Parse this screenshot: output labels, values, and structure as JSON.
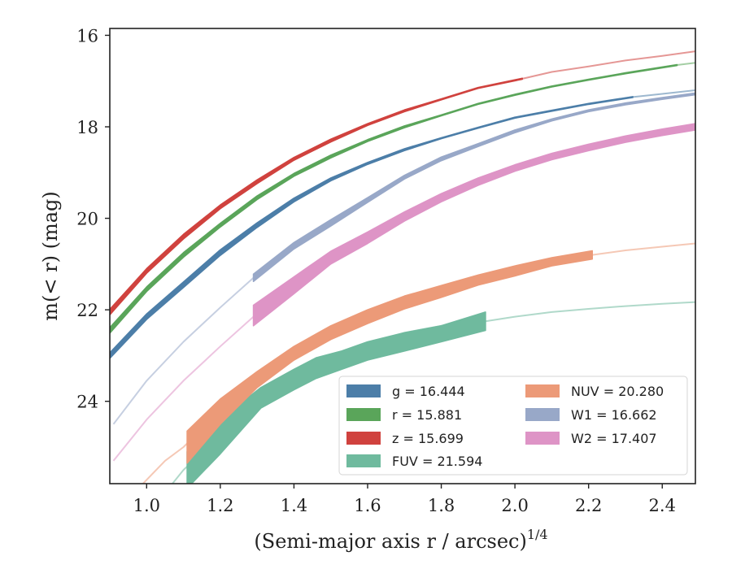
{
  "chart_data": {
    "type": "line",
    "xlabel": "(Semi-major axis r / arcsec)",
    "xlabel_exponent": "1/4",
    "ylabel": "m(< r) (mag)",
    "xlim": [
      0.9,
      2.49
    ],
    "ylim": [
      25.8,
      15.85
    ],
    "y_inverted": true,
    "x_ticks": [
      "1.0",
      "1.2",
      "1.4",
      "1.6",
      "1.8",
      "2.0",
      "2.2",
      "2.4"
    ],
    "y_ticks": [
      "16",
      "18",
      "20",
      "22",
      "24"
    ],
    "legend_position": "lower-right",
    "legend_columns": 2,
    "series": [
      {
        "name": "g = 16.444",
        "legend_label": "g = 16.444",
        "color": "#4c7ea8",
        "faint_x": [
          0.9,
          1.0,
          1.1,
          1.2,
          1.3,
          1.4,
          1.5,
          1.6,
          1.7,
          1.8,
          1.9,
          2.0,
          2.1,
          2.2,
          2.32,
          2.4,
          2.49
        ],
        "faint_y": [
          23.0,
          22.15,
          21.45,
          20.75,
          20.15,
          19.6,
          19.15,
          18.8,
          18.5,
          18.25,
          18.02,
          17.8,
          17.65,
          17.5,
          17.35,
          17.28,
          17.2
        ],
        "bold_x": [
          0.9,
          1.0,
          1.1,
          1.2,
          1.3,
          1.4,
          1.5,
          1.6,
          1.7,
          1.8,
          1.9,
          2.0,
          2.1,
          2.2,
          2.32
        ],
        "bold_upper": [
          22.94,
          22.09,
          21.39,
          20.69,
          20.1,
          19.56,
          19.12,
          18.78,
          18.48,
          18.24,
          18.01,
          17.79,
          17.64,
          17.49,
          17.34
        ],
        "bold_lower": [
          23.06,
          22.21,
          21.51,
          20.81,
          20.2,
          19.64,
          19.18,
          18.82,
          18.52,
          18.26,
          18.03,
          17.81,
          17.66,
          17.51,
          17.36
        ]
      },
      {
        "name": "r = 15.881",
        "legend_label": "r = 15.881",
        "color": "#5aa55a",
        "faint_x": [
          0.9,
          1.0,
          1.1,
          1.2,
          1.3,
          1.4,
          1.5,
          1.6,
          1.7,
          1.8,
          1.9,
          2.0,
          2.1,
          2.2,
          2.3,
          2.44,
          2.49
        ],
        "faint_y": [
          22.45,
          21.55,
          20.8,
          20.15,
          19.55,
          19.05,
          18.65,
          18.3,
          18.0,
          17.75,
          17.5,
          17.3,
          17.12,
          16.97,
          16.83,
          16.65,
          16.6
        ],
        "bold_x": [
          0.9,
          1.0,
          1.1,
          1.2,
          1.3,
          1.4,
          1.5,
          1.6,
          1.7,
          1.8,
          1.9,
          2.0,
          2.1,
          2.2,
          2.3,
          2.44
        ],
        "bold_upper": [
          22.39,
          21.5,
          20.75,
          20.11,
          19.51,
          19.02,
          18.62,
          18.28,
          17.98,
          17.74,
          17.49,
          17.29,
          17.11,
          16.96,
          16.82,
          16.64
        ],
        "bold_lower": [
          22.51,
          21.6,
          20.85,
          20.19,
          19.59,
          19.08,
          18.68,
          18.32,
          18.02,
          17.76,
          17.51,
          17.31,
          17.13,
          16.98,
          16.84,
          16.66
        ]
      },
      {
        "name": "z = 15.699",
        "legend_label": "z = 15.699",
        "color": "#d0423e",
        "faint_x": [
          0.9,
          1.0,
          1.1,
          1.2,
          1.3,
          1.4,
          1.5,
          1.6,
          1.7,
          1.8,
          1.9,
          2.02,
          2.1,
          2.2,
          2.3,
          2.4,
          2.49
        ],
        "faint_y": [
          22.05,
          21.15,
          20.4,
          19.75,
          19.2,
          18.7,
          18.3,
          17.95,
          17.65,
          17.4,
          17.15,
          16.95,
          16.8,
          16.68,
          16.55,
          16.45,
          16.35
        ],
        "bold_x": [
          0.9,
          1.0,
          1.1,
          1.2,
          1.3,
          1.4,
          1.5,
          1.6,
          1.7,
          1.8,
          1.9,
          2.02
        ],
        "bold_upper": [
          21.99,
          21.1,
          20.35,
          19.71,
          19.16,
          18.67,
          18.27,
          17.93,
          17.63,
          17.39,
          17.14,
          16.94
        ],
        "bold_lower": [
          22.11,
          21.2,
          20.45,
          19.79,
          19.24,
          18.73,
          18.33,
          17.97,
          17.67,
          17.41,
          17.16,
          16.96
        ]
      },
      {
        "name": "FUV = 21.594",
        "legend_label": "FUV = 21.594",
        "color": "#6fba9e",
        "faint_x": [
          1.07,
          1.1,
          1.2,
          1.3,
          1.4,
          1.5,
          1.6,
          1.7,
          1.8,
          1.92,
          2.0,
          2.1,
          2.2,
          2.3,
          2.4,
          2.49
        ],
        "faint_y": [
          25.8,
          25.5,
          24.75,
          24.0,
          23.45,
          23.05,
          22.75,
          22.5,
          22.35,
          22.25,
          22.15,
          22.05,
          21.98,
          21.92,
          21.87,
          21.83
        ],
        "bold_x": [
          1.11,
          1.2,
          1.31,
          1.4,
          1.46,
          1.53,
          1.6,
          1.7,
          1.8,
          1.92
        ],
        "bold_upper": [
          25.1,
          24.4,
          23.7,
          23.3,
          23.05,
          22.9,
          22.7,
          22.5,
          22.35,
          22.05
        ],
        "bold_lower": [
          25.9,
          25.15,
          24.15,
          23.75,
          23.5,
          23.3,
          23.1,
          22.9,
          22.7,
          22.45
        ]
      },
      {
        "name": "NUV = 20.280",
        "legend_label": "NUV = 20.280",
        "color": "#ec9a78",
        "faint_x": [
          0.99,
          1.05,
          1.1,
          1.2,
          1.3,
          1.4,
          1.5,
          1.6,
          1.7,
          1.8,
          1.9,
          2.0,
          2.1,
          2.21,
          2.3,
          2.4,
          2.49
        ],
        "faint_y": [
          25.8,
          25.3,
          25.0,
          24.2,
          23.5,
          22.95,
          22.5,
          22.15,
          21.85,
          21.6,
          21.35,
          21.15,
          20.95,
          20.8,
          20.7,
          20.62,
          20.55
        ],
        "bold_x": [
          1.11,
          1.2,
          1.3,
          1.4,
          1.5,
          1.6,
          1.7,
          1.8,
          1.9,
          2.0,
          2.1,
          2.21
        ],
        "bold_upper": [
          24.65,
          23.95,
          23.35,
          22.8,
          22.35,
          22.0,
          21.7,
          21.47,
          21.24,
          21.04,
          20.86,
          20.71
        ],
        "bold_lower": [
          25.35,
          24.5,
          23.7,
          23.1,
          22.65,
          22.3,
          21.98,
          21.73,
          21.46,
          21.26,
          21.04,
          20.89
        ]
      },
      {
        "name": "W1 = 16.662",
        "legend_label": "W1 = 16.662",
        "color": "#98a8c8",
        "faint_x": [
          0.91,
          1.0,
          1.1,
          1.2,
          1.29,
          1.4,
          1.5,
          1.6,
          1.7,
          1.8,
          1.9,
          2.0,
          2.1,
          2.2,
          2.3,
          2.4,
          2.49
        ],
        "faint_y": [
          24.5,
          23.55,
          22.7,
          21.95,
          21.3,
          20.6,
          20.1,
          19.6,
          19.1,
          18.7,
          18.4,
          18.1,
          17.85,
          17.65,
          17.5,
          17.38,
          17.28
        ],
        "bold_x": [
          1.29,
          1.4,
          1.5,
          1.6,
          1.7,
          1.8,
          1.9,
          2.0,
          2.1,
          2.2,
          2.3,
          2.4,
          2.49
        ],
        "bold_upper": [
          21.22,
          20.53,
          20.03,
          19.55,
          19.06,
          18.66,
          18.37,
          18.07,
          17.83,
          17.63,
          17.48,
          17.36,
          17.26
        ],
        "bold_lower": [
          21.38,
          20.67,
          20.17,
          19.65,
          19.14,
          18.74,
          18.43,
          18.13,
          17.87,
          17.67,
          17.52,
          17.4,
          17.3
        ]
      },
      {
        "name": "W2 = 17.407",
        "legend_label": "W2 = 17.407",
        "color": "#de94c6",
        "faint_x": [
          0.91,
          1.0,
          1.1,
          1.2,
          1.29,
          1.4,
          1.5,
          1.6,
          1.7,
          1.8,
          1.9,
          2.0,
          2.1,
          2.2,
          2.3,
          2.4,
          2.49
        ],
        "faint_y": [
          25.3,
          24.4,
          23.55,
          22.8,
          22.15,
          21.45,
          20.85,
          20.4,
          19.95,
          19.55,
          19.2,
          18.9,
          18.65,
          18.45,
          18.27,
          18.12,
          18.0
        ],
        "bold_x": [
          1.29,
          1.4,
          1.5,
          1.6,
          1.7,
          1.8,
          1.9,
          2.0,
          2.1,
          2.2,
          2.3,
          2.4,
          2.49
        ],
        "bold_upper": [
          21.9,
          21.28,
          20.72,
          20.3,
          19.86,
          19.46,
          19.12,
          18.83,
          18.58,
          18.38,
          18.2,
          18.05,
          17.93
        ],
        "bold_lower": [
          22.35,
          21.65,
          21.0,
          20.55,
          20.06,
          19.64,
          19.28,
          18.97,
          18.72,
          18.52,
          18.34,
          18.19,
          18.07
        ]
      }
    ]
  }
}
